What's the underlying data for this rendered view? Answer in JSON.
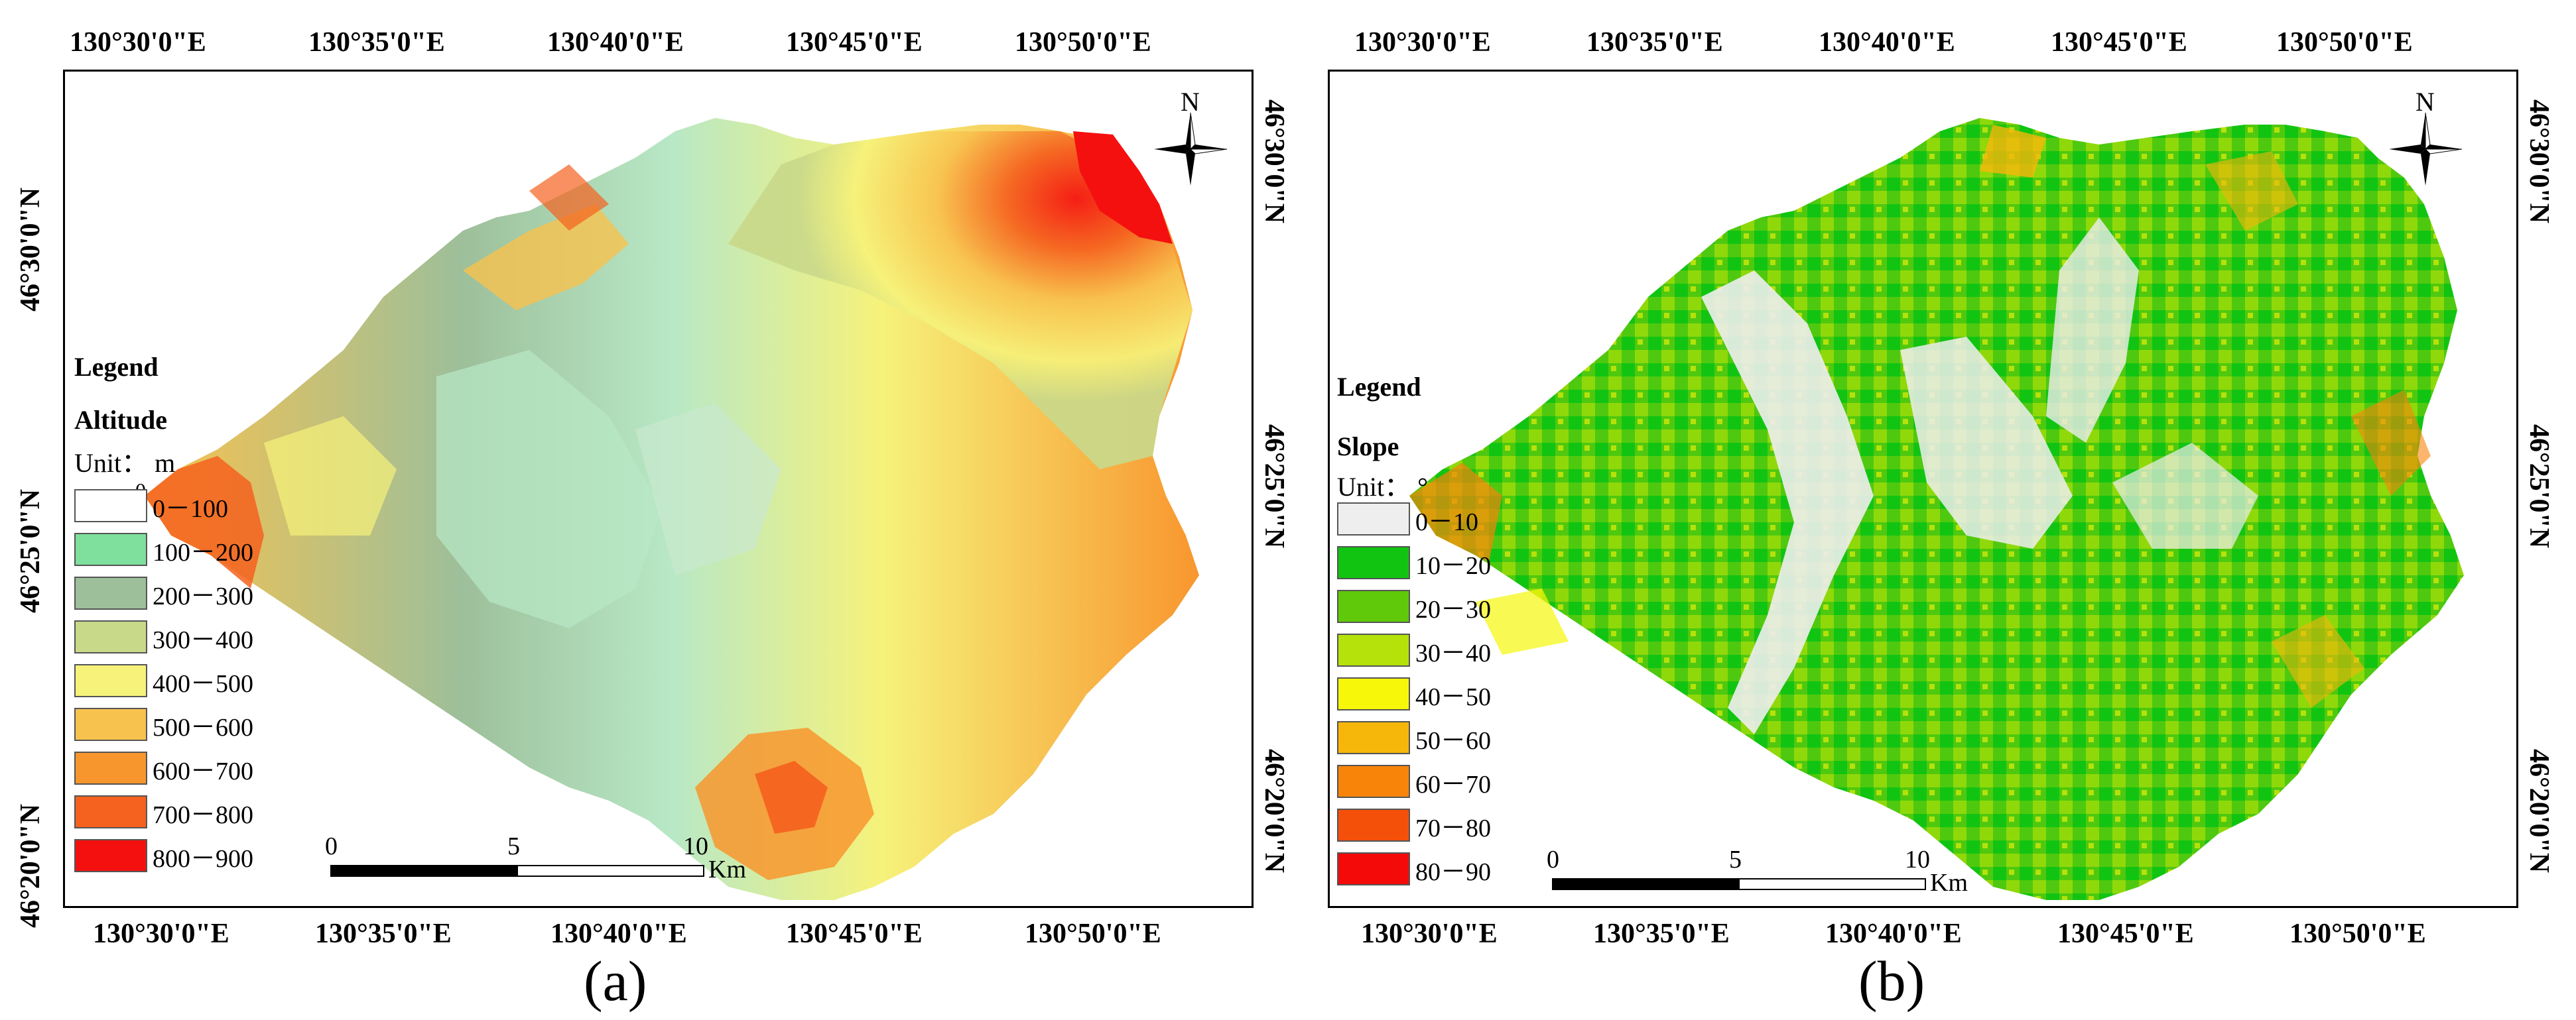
{
  "panel_a": {
    "label": "(a)",
    "lon_ticks": [
      "130°30'0\"E",
      "130°35'0\"E",
      "130°40'0\"E",
      "130°45'0\"E",
      "130°50'0\"E"
    ],
    "lat_ticks": [
      "46°30'0\"N",
      "46°25'0\"N",
      "46°20'0\"N"
    ],
    "legend": {
      "heading": "Legend",
      "title": "Altitude",
      "unit": "Unit： m",
      "stray": "0",
      "items": [
        {
          "label": "0－100",
          "color": "#ffffff"
        },
        {
          "label": "100－200",
          "color": "#7fdf9c"
        },
        {
          "label": "200－300",
          "color": "#9dbf9a"
        },
        {
          "label": "300－400",
          "color": "#c9d98a"
        },
        {
          "label": "400－500",
          "color": "#f6f27a"
        },
        {
          "label": "500－600",
          "color": "#f8c24e"
        },
        {
          "label": "600－700",
          "color": "#f8962e"
        },
        {
          "label": "700－800",
          "color": "#f5611e"
        },
        {
          "label": "800－900",
          "color": "#f51010"
        }
      ]
    },
    "scale": {
      "ticks": [
        "0",
        "5",
        "10"
      ],
      "unit": "Km"
    },
    "north": "N"
  },
  "panel_b": {
    "label": "(b)",
    "lon_ticks": [
      "130°30'0\"E",
      "130°35'0\"E",
      "130°40'0\"E",
      "130°45'0\"E",
      "130°50'0\"E"
    ],
    "lat_ticks": [
      "46°30'0\"N",
      "46°25'0\"N",
      "46°20'0\"N"
    ],
    "legend": {
      "heading": "Legend",
      "title": "Slope",
      "unit": "Unit： °",
      "items": [
        {
          "label": "0－10",
          "color": "#eeeeee"
        },
        {
          "label": "10－20",
          "color": "#12c412"
        },
        {
          "label": "20－30",
          "color": "#5fc90a"
        },
        {
          "label": "30－40",
          "color": "#b5e20a"
        },
        {
          "label": "40－50",
          "color": "#f7f70a"
        },
        {
          "label": "50－60",
          "color": "#f7b60a"
        },
        {
          "label": "60－70",
          "color": "#f8840a"
        },
        {
          "label": "70－80",
          "color": "#f5500a"
        },
        {
          "label": "80－90",
          "color": "#f50a0a"
        }
      ]
    },
    "scale": {
      "ticks": [
        "0",
        "5",
        "10"
      ],
      "unit": "Km"
    },
    "north": "N"
  }
}
